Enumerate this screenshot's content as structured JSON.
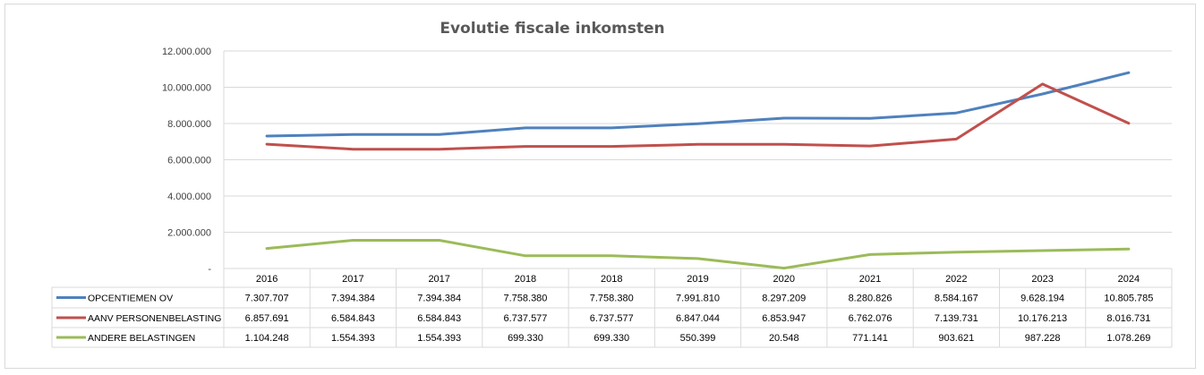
{
  "chart_data": {
    "type": "line",
    "title": "Evolutie fiscale inkomsten",
    "categories": [
      "2016",
      "2017",
      "2017",
      "2018",
      "2018",
      "2019",
      "2020",
      "2021",
      "2022",
      "2023",
      "2024"
    ],
    "ylim": [
      0,
      12000000
    ],
    "y_ticks": [
      0,
      2000000,
      4000000,
      6000000,
      8000000,
      10000000,
      12000000
    ],
    "y_tick_labels": [
      "-",
      "2.000.000",
      "4.000.000",
      "6.000.000",
      "8.000.000",
      "10.000.000",
      "12.000.000"
    ],
    "grid": true,
    "legend_placement": "data-table",
    "series": [
      {
        "name": "OPCENTIEMEN OV",
        "color": "#4f81bd",
        "values": [
          7307707,
          7394384,
          7394384,
          7758380,
          7758380,
          7991810,
          8297209,
          8280826,
          8584167,
          9628194,
          10805785
        ],
        "labels": [
          "7.307.707",
          "7.394.384",
          "7.394.384",
          "7.758.380",
          "7.758.380",
          "7.991.810",
          "8.297.209",
          "8.280.826",
          "8.584.167",
          "9.628.194",
          "10.805.785"
        ]
      },
      {
        "name": "AANV PERSONENBELASTING",
        "color": "#c0504d",
        "values": [
          6857691,
          6584843,
          6584843,
          6737577,
          6737577,
          6847044,
          6853947,
          6762076,
          7139731,
          10176213,
          8016731
        ],
        "labels": [
          "6.857.691",
          "6.584.843",
          "6.584.843",
          "6.737.577",
          "6.737.577",
          "6.847.044",
          "6.853.947",
          "6.762.076",
          "7.139.731",
          "10.176.213",
          "8.016.731"
        ]
      },
      {
        "name": "ANDERE BELASTINGEN",
        "color": "#9bbb59",
        "values": [
          1104248,
          1554393,
          1554393,
          699330,
          699330,
          550399,
          20548,
          771141,
          903621,
          987228,
          1078269
        ],
        "labels": [
          "1.104.248",
          "1.554.393",
          "1.554.393",
          "699.330",
          "699.330",
          "550.399",
          "20.548",
          "771.141",
          "903.621",
          "987.228",
          "1.078.269"
        ]
      }
    ]
  }
}
